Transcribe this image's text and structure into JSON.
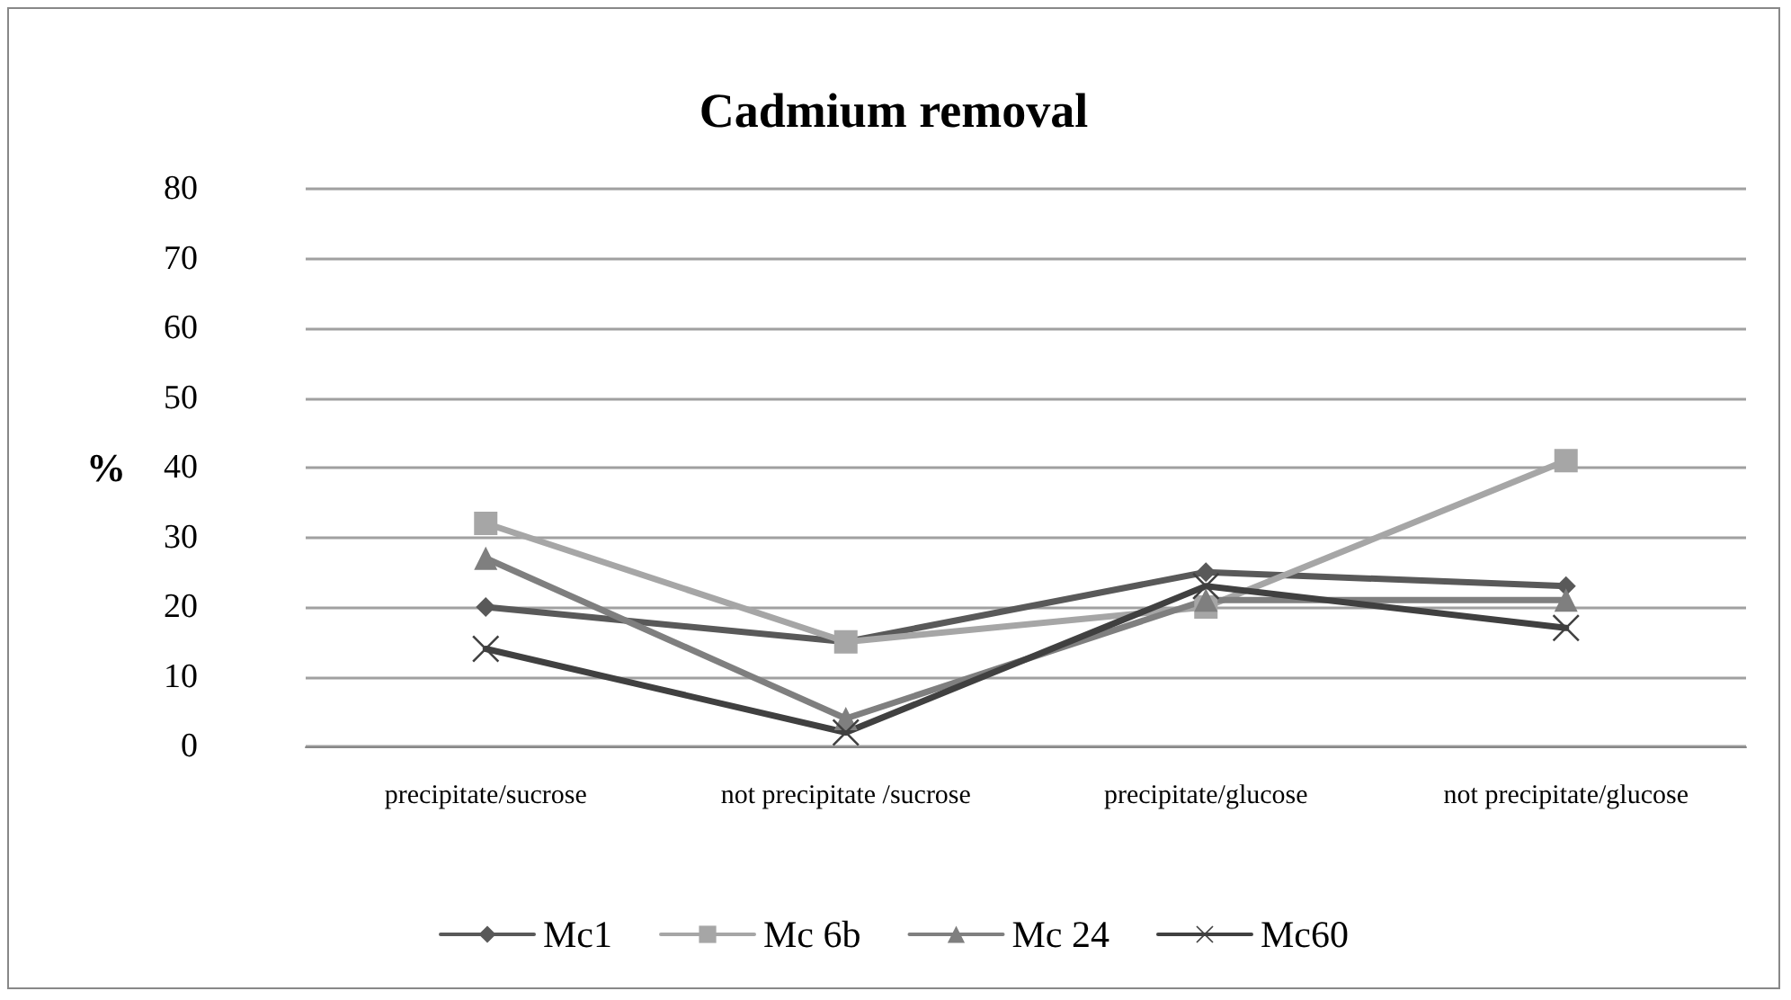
{
  "chart_data": {
    "type": "line",
    "title": "Cadmium removal",
    "ylabel": "%",
    "categories": [
      "precipitate/sucrose",
      "not precipitate /sucrose",
      "precipitate/glucose",
      "not precipitate/glucose"
    ],
    "series": [
      {
        "name": "Mc1",
        "color": "#595959",
        "marker": "diamond",
        "values": [
          20,
          15,
          25,
          23
        ]
      },
      {
        "name": "Mc 6b",
        "color": "#a6a6a6",
        "marker": "square",
        "values": [
          32,
          15,
          20,
          41
        ]
      },
      {
        "name": "Mc 24",
        "color": "#7f7f7f",
        "marker": "triangle",
        "values": [
          27,
          4,
          21,
          21
        ]
      },
      {
        "name": "Mc60",
        "color": "#404040",
        "marker": "cross",
        "values": [
          14,
          2,
          23,
          17
        ]
      }
    ],
    "ylim": [
      0,
      80
    ],
    "yticks": [
      0,
      10,
      20,
      30,
      40,
      50,
      60,
      70,
      80
    ],
    "grid": "y",
    "legend": "bottom",
    "line_style": "solid"
  }
}
